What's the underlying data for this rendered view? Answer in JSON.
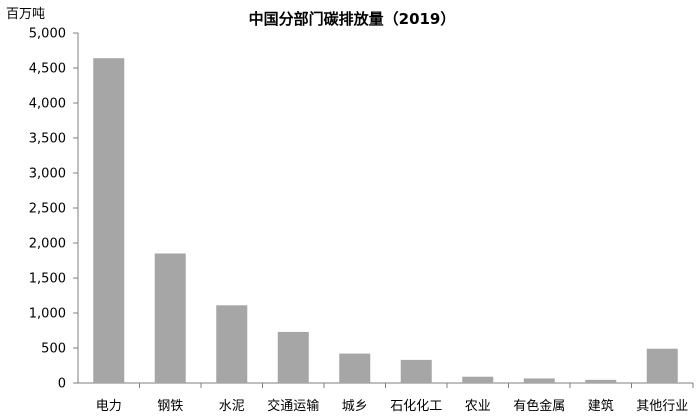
{
  "chart_data": {
    "type": "bar",
    "title": "中国分部门碳排放量（2019）",
    "ylabel": "百万吨",
    "xlabel": "",
    "categories": [
      "电力",
      "钢铁",
      "水泥",
      "交通运输",
      "城乡",
      "石化化工",
      "农业",
      "有色金属",
      "建筑",
      "其他行业"
    ],
    "values": [
      4640,
      1850,
      1110,
      730,
      420,
      330,
      90,
      65,
      45,
      490
    ],
    "ylim": [
      0,
      5000
    ],
    "yticks": [
      0,
      500,
      1000,
      1500,
      2000,
      2500,
      3000,
      3500,
      4000,
      4500,
      5000
    ],
    "ytick_labels": [
      "0",
      "500",
      "1,000",
      "1,500",
      "2,000",
      "2,500",
      "3,000",
      "3,500",
      "4,000",
      "4,500",
      "5,000"
    ],
    "grid": false,
    "legend": "none",
    "colors": {
      "bar": "#a6a6a6",
      "axis": "#7f7f7f",
      "text": "#000000"
    }
  }
}
